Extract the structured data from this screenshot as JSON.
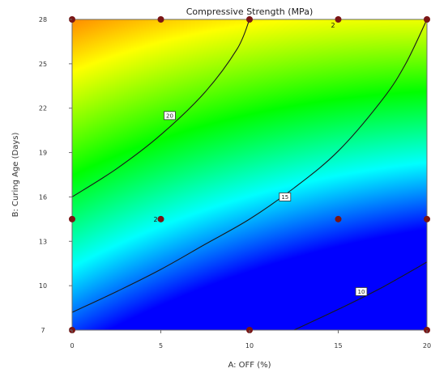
{
  "chart_data": {
    "type": "contour",
    "title": "Compressive Strength (MPa)",
    "xlabel": "A: OFF (%)",
    "ylabel": "B: Curing Age (Days)",
    "xlim": [
      0,
      20
    ],
    "ylim": [
      7,
      28
    ],
    "x_ticks": [
      0,
      5,
      10,
      15,
      20
    ],
    "y_ticks": [
      7,
      10,
      13,
      16,
      19,
      22,
      25,
      28
    ],
    "x_tick_labels": [
      "0",
      "5",
      "10",
      "15",
      "20"
    ],
    "y_tick_labels": [
      "7",
      "10",
      "13",
      "16",
      "19",
      "22",
      "25",
      "28"
    ],
    "color_scale": {
      "low_value": 9.9,
      "high_value": 21.1,
      "stops": [
        "#0000ff",
        "#00ffff",
        "#00ff00",
        "#ffff00",
        "#ff0000"
      ]
    },
    "contours": [
      {
        "label": "10",
        "label_x": 16.3,
        "label_y": 9.6,
        "points": [
          [
            12.5,
            7
          ],
          [
            15,
            8.4
          ],
          [
            17.5,
            9.9
          ],
          [
            20,
            11.6
          ]
        ]
      },
      {
        "label": "15",
        "label_x": 12,
        "label_y": 16,
        "points": [
          [
            0,
            8.2
          ],
          [
            2.5,
            9.6
          ],
          [
            5,
            11.1
          ],
          [
            7.5,
            12.8
          ],
          [
            10,
            14.5
          ],
          [
            12.5,
            16.6
          ],
          [
            15,
            19.1
          ],
          [
            17.5,
            22.6
          ],
          [
            18.8,
            25
          ],
          [
            20,
            28
          ]
        ]
      },
      {
        "label": "20",
        "label_x": 5.5,
        "label_y": 21.5,
        "points": [
          [
            0,
            16
          ],
          [
            2.5,
            17.9
          ],
          [
            5,
            20.2
          ],
          [
            7.5,
            23.1
          ],
          [
            9.3,
            26
          ],
          [
            10,
            28
          ]
        ]
      }
    ],
    "design_points": [
      {
        "x": 0,
        "y": 7,
        "label": ""
      },
      {
        "x": 10,
        "y": 7,
        "label": ""
      },
      {
        "x": 20,
        "y": 7,
        "label": ""
      },
      {
        "x": 0,
        "y": 14.5,
        "label": ""
      },
      {
        "x": 5,
        "y": 14.5,
        "label": "2"
      },
      {
        "x": 15,
        "y": 14.5,
        "label": ""
      },
      {
        "x": 20,
        "y": 14.5,
        "label": ""
      },
      {
        "x": 0,
        "y": 28,
        "label": ""
      },
      {
        "x": 5,
        "y": 28,
        "label": ""
      },
      {
        "x": 10,
        "y": 28,
        "label": ""
      },
      {
        "x": 15,
        "y": 28,
        "label": "2"
      },
      {
        "x": 20,
        "y": 28,
        "label": ""
      }
    ],
    "grid": false,
    "legend": "none"
  }
}
